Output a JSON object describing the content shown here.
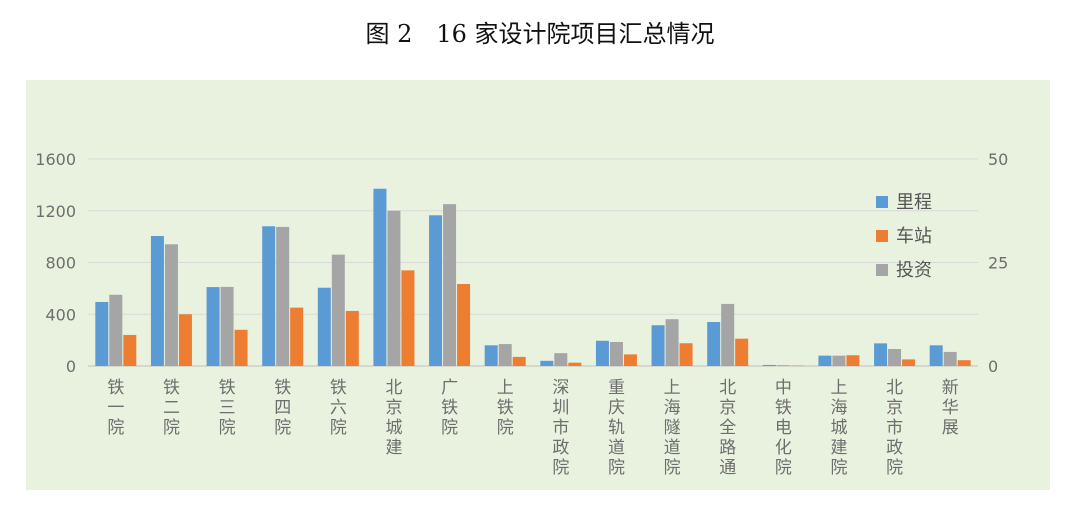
{
  "figure_title": "图 2　16 家设计院项目汇总情况",
  "chart_data": {
    "type": "bar",
    "title": "",
    "xlabel": "",
    "ylabel": "",
    "ylim": [
      0,
      1600
    ],
    "y2lim": [
      0,
      50
    ],
    "yticks": [
      "0",
      "400",
      "800",
      "1200",
      "1600"
    ],
    "y2ticks": [
      "0",
      "25",
      "50"
    ],
    "grid": true,
    "legend_position": "right",
    "categories": [
      "铁一院",
      "铁二院",
      "铁三院",
      "铁四院",
      "铁六院",
      "北京城建",
      "广铁院",
      "上铁院",
      "深圳市政院",
      "重庆轨道院",
      "上海隧道院",
      "北京全路通",
      "中铁电化院",
      "上海城建院",
      "北京市政院",
      "新华展"
    ],
    "series": [
      {
        "name": "里程",
        "color": "#5b9bd5",
        "axis": "left",
        "values": [
          495,
          1005,
          610,
          1080,
          605,
          1370,
          1165,
          160,
          40,
          195,
          315,
          340,
          8,
          80,
          175,
          160
        ]
      },
      {
        "name": "车站",
        "color": "#ed7d31",
        "axis": "right",
        "values": [
          7.5,
          12.5,
          8.75,
          14.1,
          13.3,
          23.1,
          19.8,
          2.2,
          0.8,
          2.8,
          5.5,
          6.6,
          0.1,
          2.6,
          1.6,
          1.4
        ]
      },
      {
        "name": "投资",
        "color": "#a5a5a5",
        "axis": "right",
        "values": [
          17.2,
          29.4,
          19.1,
          33.6,
          26.9,
          37.5,
          39.1,
          5.3,
          3.1,
          5.8,
          11.3,
          15.0,
          0.2,
          2.5,
          4.1,
          3.4
        ]
      }
    ]
  }
}
